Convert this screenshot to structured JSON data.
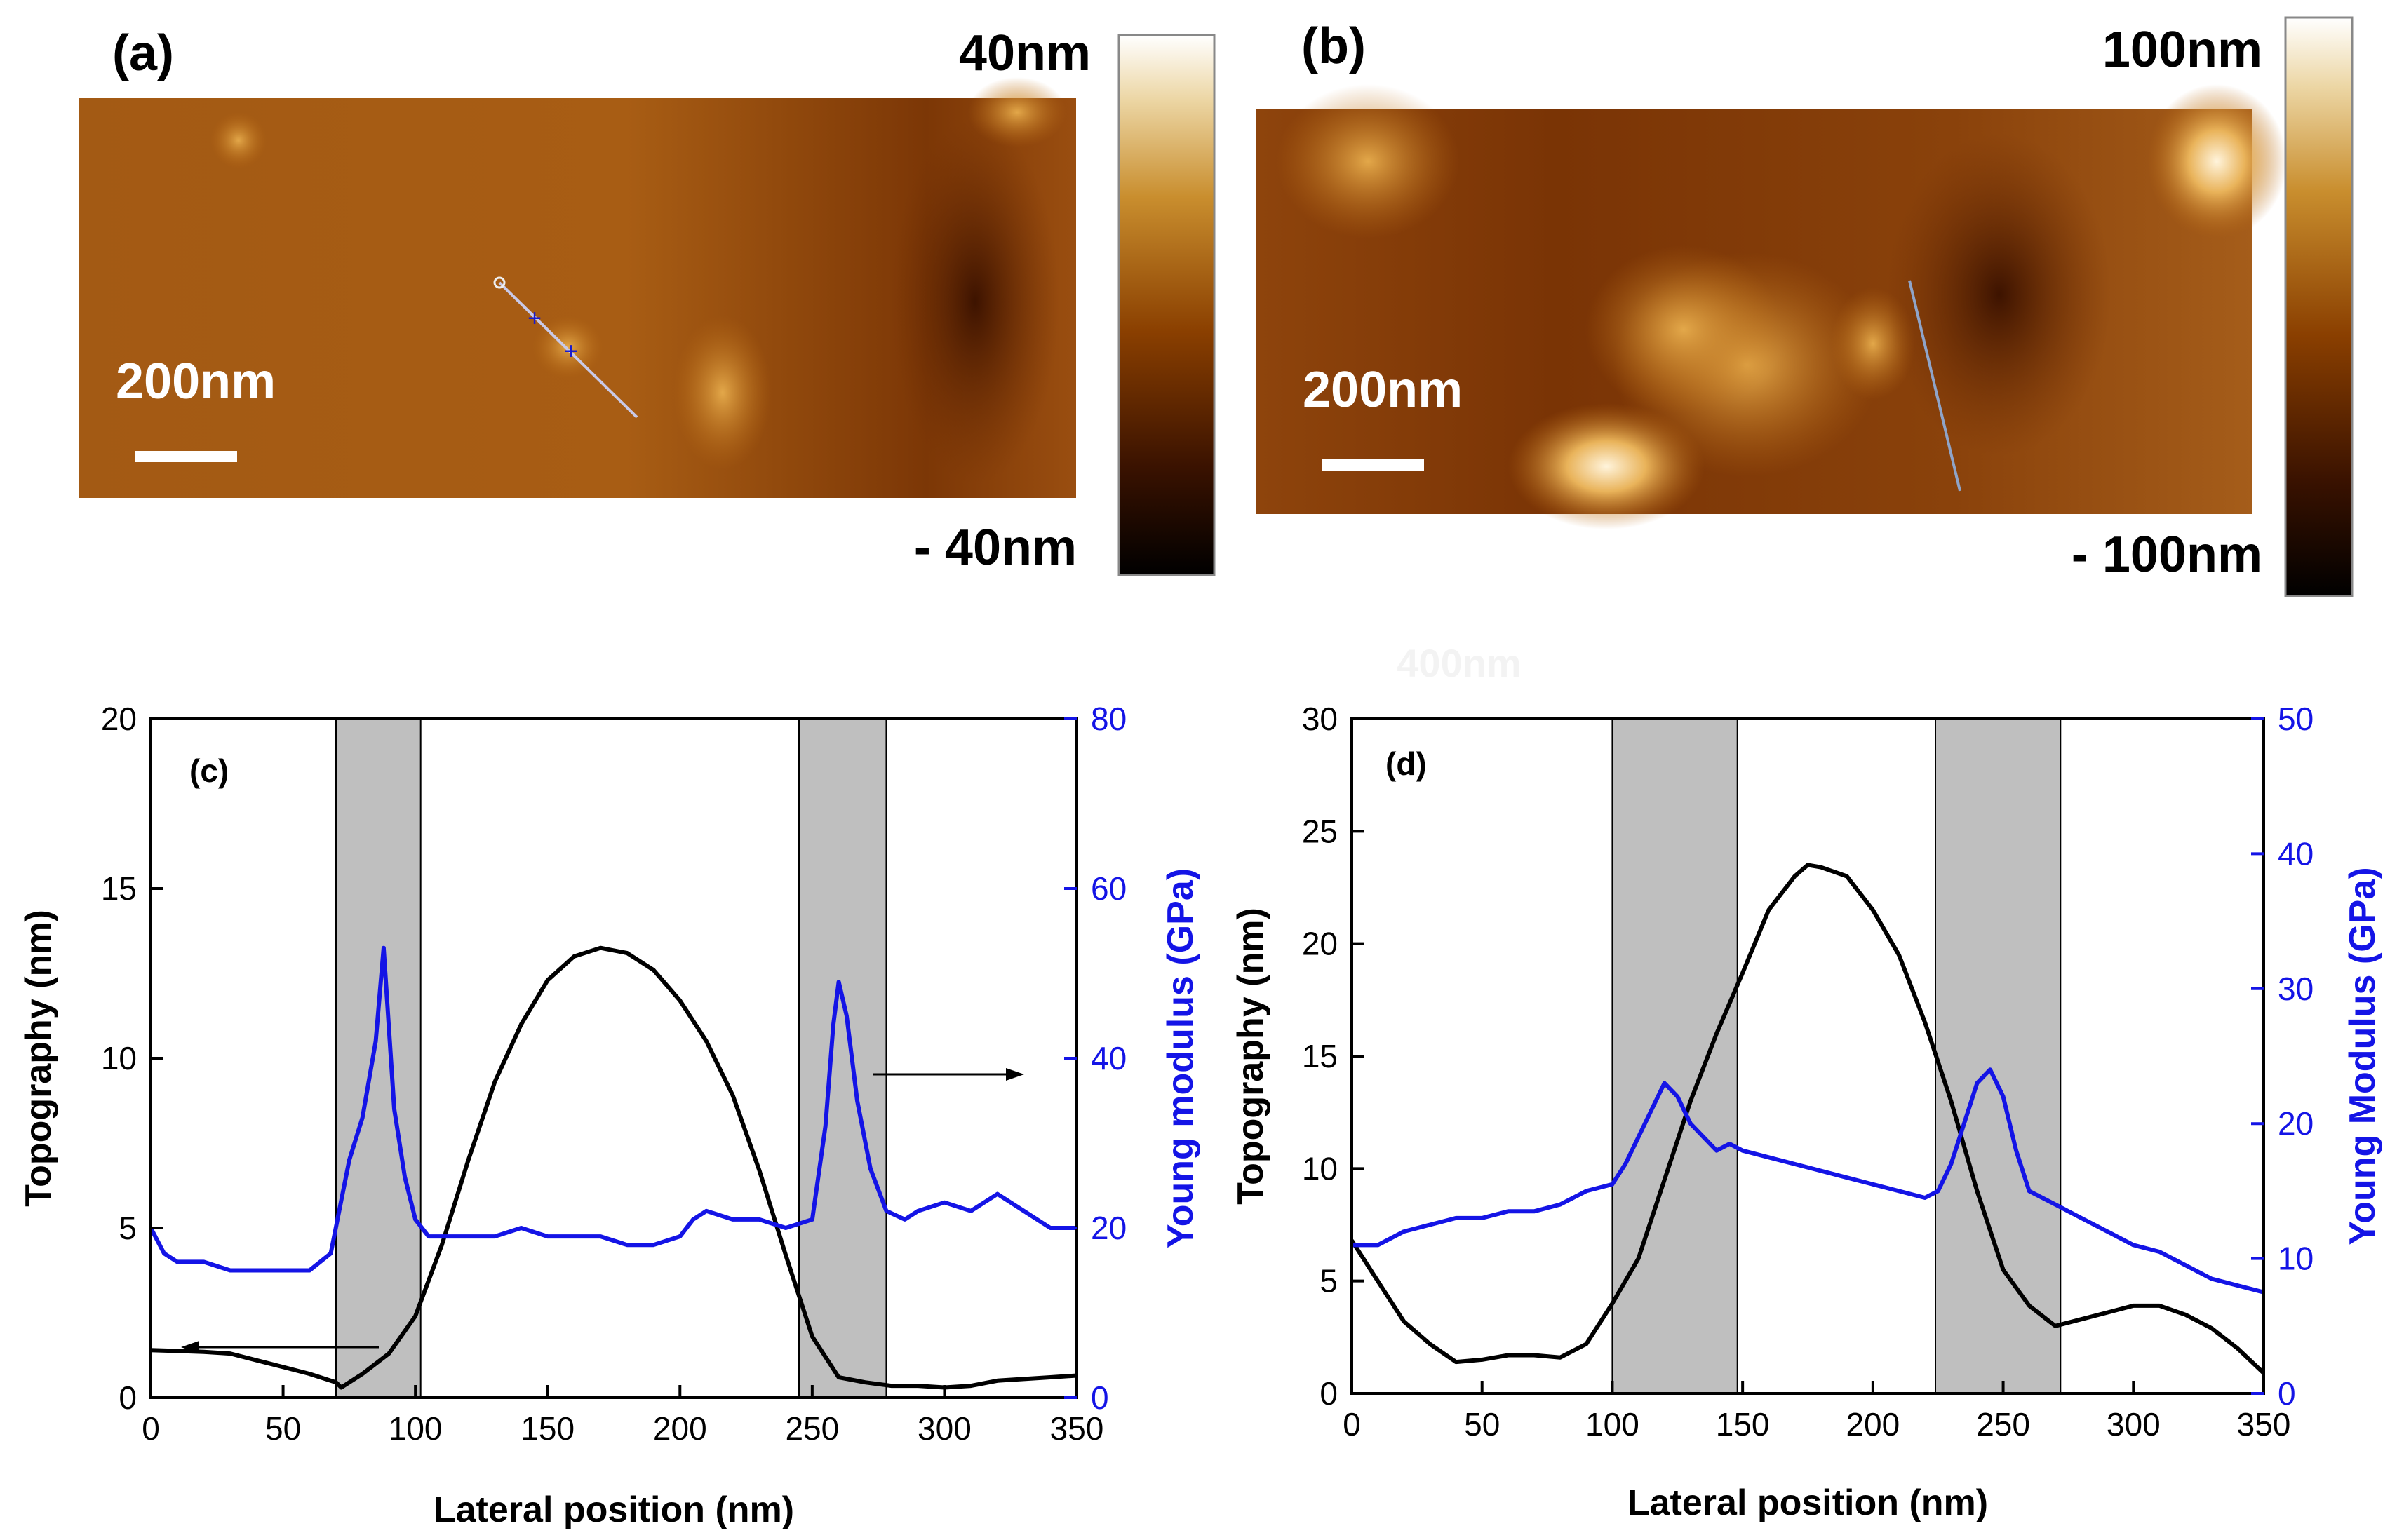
{
  "panels": {
    "a": {
      "label": "(a)",
      "scale_top": "40nm",
      "scale_bottom": "- 40nm",
      "scalebar": "200nm"
    },
    "b": {
      "label": "(b)",
      "scale_top": "100nm",
      "scale_bottom": "- 100nm",
      "scalebar": "200nm"
    },
    "watermark": "400nm"
  },
  "colors": {
    "topography": "#000000",
    "modulus": "#1414e6",
    "band": "#bfbfbf"
  },
  "chart_data": [
    {
      "type": "line",
      "panel_label": "(c)",
      "xlabel": "Lateral position (nm)",
      "ylabel_left": "Topography (nm)",
      "ylabel_right": "Young modulus (GPa)",
      "xlim": [
        0,
        350
      ],
      "ylim_left": [
        0,
        20
      ],
      "ylim_right": [
        0,
        80
      ],
      "xticks": [
        0,
        50,
        100,
        150,
        200,
        250,
        300,
        350
      ],
      "yticks_left": [
        0,
        5,
        10,
        15,
        20
      ],
      "yticks_right": [
        0,
        20,
        40,
        60,
        80
      ],
      "shaded_bands": [
        [
          70,
          102
        ],
        [
          245,
          278
        ]
      ],
      "grid": false,
      "series": [
        {
          "axis": "left",
          "x": [
            0,
            20,
            30,
            40,
            50,
            60,
            70,
            72,
            80,
            90,
            100,
            110,
            120,
            130,
            140,
            150,
            160,
            170,
            180,
            190,
            200,
            210,
            220,
            230,
            240,
            250,
            260,
            270,
            280,
            290,
            300,
            310,
            320,
            330,
            340,
            350
          ],
          "values": [
            1.4,
            1.35,
            1.3,
            1.1,
            0.9,
            0.7,
            0.45,
            0.3,
            0.7,
            1.3,
            2.4,
            4.5,
            7.0,
            9.3,
            11.0,
            12.3,
            13.0,
            13.25,
            13.1,
            12.6,
            11.7,
            10.5,
            8.9,
            6.7,
            4.2,
            1.8,
            0.6,
            0.45,
            0.35,
            0.35,
            0.3,
            0.35,
            0.5,
            0.55,
            0.6,
            0.65
          ]
        },
        {
          "axis": "right",
          "x": [
            0,
            5,
            10,
            20,
            30,
            40,
            50,
            60,
            68,
            75,
            80,
            85,
            88,
            92,
            96,
            100,
            105,
            110,
            120,
            130,
            140,
            150,
            160,
            170,
            180,
            190,
            200,
            205,
            210,
            220,
            230,
            240,
            250,
            255,
            258,
            260,
            263,
            267,
            272,
            278,
            285,
            290,
            300,
            310,
            320,
            330,
            340,
            350
          ],
          "values": [
            20,
            17,
            16,
            16,
            15,
            15,
            15,
            15,
            17,
            28,
            33,
            42,
            53,
            34,
            26,
            21,
            19,
            19,
            19,
            19,
            20,
            19,
            19,
            19,
            18,
            18,
            19,
            21,
            22,
            21,
            21,
            20,
            21,
            32,
            44,
            49,
            45,
            35,
            27,
            22,
            21,
            22,
            23,
            22,
            24,
            22,
            20,
            20
          ]
        }
      ]
    },
    {
      "type": "line",
      "panel_label": "(d)",
      "xlabel": "Lateral position (nm)",
      "ylabel_left": "Topography (nm)",
      "ylabel_right": "Young Modulus (GPa)",
      "xlim": [
        0,
        350
      ],
      "ylim_left": [
        0,
        30
      ],
      "ylim_right": [
        0,
        50
      ],
      "xticks": [
        0,
        50,
        100,
        150,
        200,
        250,
        300,
        350
      ],
      "yticks_left": [
        0,
        5,
        10,
        15,
        20,
        25,
        30
      ],
      "yticks_right": [
        0,
        10,
        20,
        30,
        40,
        50
      ],
      "shaded_bands": [
        [
          100,
          148
        ],
        [
          224,
          272
        ]
      ],
      "grid": false,
      "series": [
        {
          "axis": "left",
          "x": [
            0,
            10,
            20,
            30,
            40,
            50,
            60,
            70,
            80,
            90,
            100,
            110,
            120,
            130,
            140,
            150,
            160,
            170,
            175,
            180,
            190,
            200,
            210,
            220,
            230,
            240,
            250,
            260,
            270,
            280,
            290,
            300,
            310,
            320,
            330,
            340,
            350
          ],
          "values": [
            6.8,
            5.0,
            3.2,
            2.2,
            1.4,
            1.5,
            1.7,
            1.7,
            1.6,
            2.2,
            4.0,
            6.0,
            9.5,
            13.0,
            16.0,
            18.7,
            21.5,
            23.0,
            23.5,
            23.4,
            23.0,
            21.5,
            19.5,
            16.5,
            13.0,
            9.0,
            5.5,
            3.9,
            3.0,
            3.3,
            3.6,
            3.9,
            3.9,
            3.5,
            2.9,
            2.0,
            0.9
          ]
        },
        {
          "axis": "right",
          "x": [
            0,
            10,
            20,
            30,
            40,
            50,
            60,
            70,
            80,
            90,
            100,
            105,
            110,
            115,
            120,
            125,
            130,
            135,
            140,
            145,
            150,
            160,
            170,
            180,
            190,
            200,
            210,
            220,
            225,
            230,
            235,
            240,
            245,
            250,
            255,
            260,
            270,
            280,
            290,
            300,
            310,
            320,
            330,
            340,
            350
          ],
          "values": [
            11,
            11,
            12,
            12.5,
            13,
            13,
            13.5,
            13.5,
            14,
            15,
            15.5,
            17,
            19,
            21,
            23,
            22,
            20,
            19,
            18,
            18.5,
            18,
            17.5,
            17,
            16.5,
            16,
            15.5,
            15,
            14.5,
            15,
            17,
            20,
            23,
            24,
            22,
            18,
            15,
            14,
            13,
            12,
            11,
            10.5,
            9.5,
            8.5,
            8,
            7.5
          ]
        }
      ]
    }
  ]
}
